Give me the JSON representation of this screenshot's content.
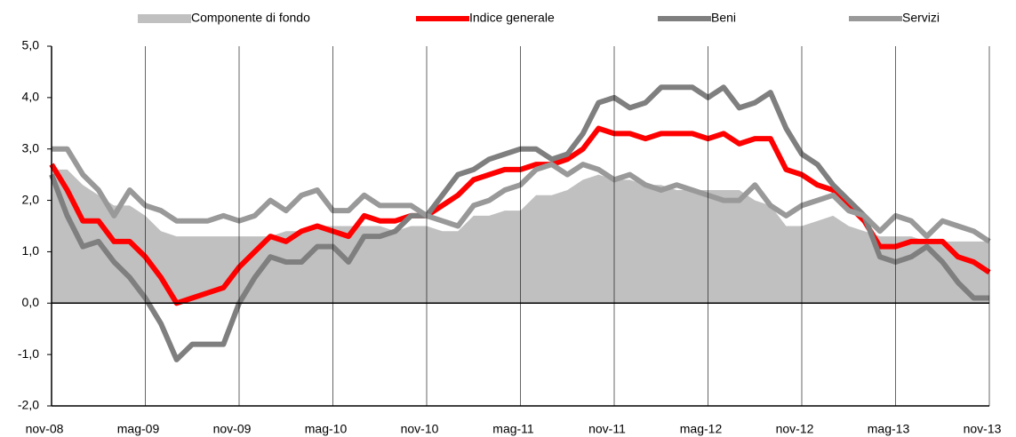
{
  "chart_data": {
    "type": "line",
    "categories": [
      "nov-08",
      null,
      null,
      null,
      null,
      null,
      "mag-09",
      null,
      null,
      null,
      null,
      null,
      "nov-09",
      null,
      null,
      null,
      null,
      null,
      "mag-10",
      null,
      null,
      null,
      null,
      null,
      "nov-10",
      null,
      null,
      null,
      null,
      null,
      "mag-11",
      null,
      null,
      null,
      null,
      null,
      "nov-11",
      null,
      null,
      null,
      null,
      null,
      "mag-12",
      null,
      null,
      null,
      null,
      null,
      "nov-12",
      null,
      null,
      null,
      null,
      null,
      "mag-13",
      null,
      null,
      null,
      null,
      null,
      "nov-13"
    ],
    "series": [
      {
        "name": "Componente di fondo",
        "color": "#c0c0c0",
        "style": "area",
        "values": [
          2.6,
          2.6,
          2.3,
          2.1,
          1.9,
          1.9,
          1.7,
          1.4,
          1.3,
          1.3,
          1.3,
          1.3,
          1.3,
          1.3,
          1.3,
          1.4,
          1.4,
          1.5,
          1.5,
          1.5,
          1.5,
          1.5,
          1.4,
          1.5,
          1.5,
          1.4,
          1.4,
          1.7,
          1.7,
          1.8,
          1.8,
          2.1,
          2.1,
          2.2,
          2.4,
          2.5,
          2.4,
          2.4,
          2.3,
          2.3,
          2.2,
          2.2,
          2.2,
          2.2,
          2.2,
          2.0,
          1.9,
          1.5,
          1.5,
          1.6,
          1.7,
          1.5,
          1.4,
          1.3,
          1.3,
          1.3,
          1.2,
          1.2,
          1.2,
          1.2,
          1.2
        ]
      },
      {
        "name": "Indice generale",
        "color": "#ff0000",
        "style": "line",
        "values": [
          2.7,
          2.2,
          1.6,
          1.6,
          1.2,
          1.2,
          0.9,
          0.5,
          0.0,
          0.1,
          0.2,
          0.3,
          0.7,
          1.0,
          1.3,
          1.2,
          1.4,
          1.5,
          1.4,
          1.3,
          1.7,
          1.6,
          1.6,
          1.7,
          1.7,
          1.9,
          2.1,
          2.4,
          2.5,
          2.6,
          2.6,
          2.7,
          2.7,
          2.8,
          3.0,
          3.4,
          3.3,
          3.3,
          3.2,
          3.3,
          3.3,
          3.3,
          3.2,
          3.3,
          3.1,
          3.2,
          3.2,
          2.6,
          2.5,
          2.3,
          2.2,
          1.9,
          1.6,
          1.1,
          1.1,
          1.2,
          1.2,
          1.2,
          0.9,
          0.8,
          0.6
        ]
      },
      {
        "name": "Beni",
        "color": "#7f7f7f",
        "style": "line",
        "values": [
          2.5,
          1.7,
          1.1,
          1.2,
          0.8,
          0.5,
          0.1,
          -0.4,
          -1.1,
          -0.8,
          -0.8,
          -0.8,
          0.0,
          0.5,
          0.9,
          0.8,
          0.8,
          1.1,
          1.1,
          0.8,
          1.3,
          1.3,
          1.4,
          1.7,
          1.7,
          2.1,
          2.5,
          2.6,
          2.8,
          2.9,
          3.0,
          3.0,
          2.8,
          2.9,
          3.3,
          3.9,
          4.0,
          3.8,
          3.9,
          4.2,
          4.2,
          4.2,
          4.0,
          4.2,
          3.8,
          3.9,
          4.1,
          3.4,
          2.9,
          2.7,
          2.3,
          2.0,
          1.7,
          0.9,
          0.8,
          0.9,
          1.1,
          0.8,
          0.4,
          0.1,
          0.1
        ]
      },
      {
        "name": "Servizi",
        "color": "#999999",
        "style": "line",
        "values": [
          3.0,
          3.0,
          2.5,
          2.2,
          1.7,
          2.2,
          1.9,
          1.8,
          1.6,
          1.6,
          1.6,
          1.7,
          1.6,
          1.7,
          2.0,
          1.8,
          2.1,
          2.2,
          1.8,
          1.8,
          2.1,
          1.9,
          1.9,
          1.9,
          1.7,
          1.6,
          1.5,
          1.9,
          2.0,
          2.2,
          2.3,
          2.6,
          2.7,
          2.5,
          2.7,
          2.6,
          2.4,
          2.5,
          2.3,
          2.2,
          2.3,
          2.2,
          2.1,
          2.0,
          2.0,
          2.3,
          1.9,
          1.7,
          1.9,
          2.0,
          2.1,
          1.8,
          1.7,
          1.4,
          1.7,
          1.6,
          1.3,
          1.6,
          1.5,
          1.4,
          1.2
        ]
      }
    ],
    "ylim": [
      -2,
      5
    ],
    "yticks": [
      {
        "value": -2,
        "label": "-2,0"
      },
      {
        "value": -1,
        "label": "-1,0"
      },
      {
        "value": 0,
        "label": "0,0"
      },
      {
        "value": 1,
        "label": "1,0"
      },
      {
        "value": 2,
        "label": "2,0"
      },
      {
        "value": 3,
        "label": "3,0"
      },
      {
        "value": 4,
        "label": "4,0"
      },
      {
        "value": 5,
        "label": "5,0"
      }
    ],
    "grid": false,
    "legend": "top"
  }
}
